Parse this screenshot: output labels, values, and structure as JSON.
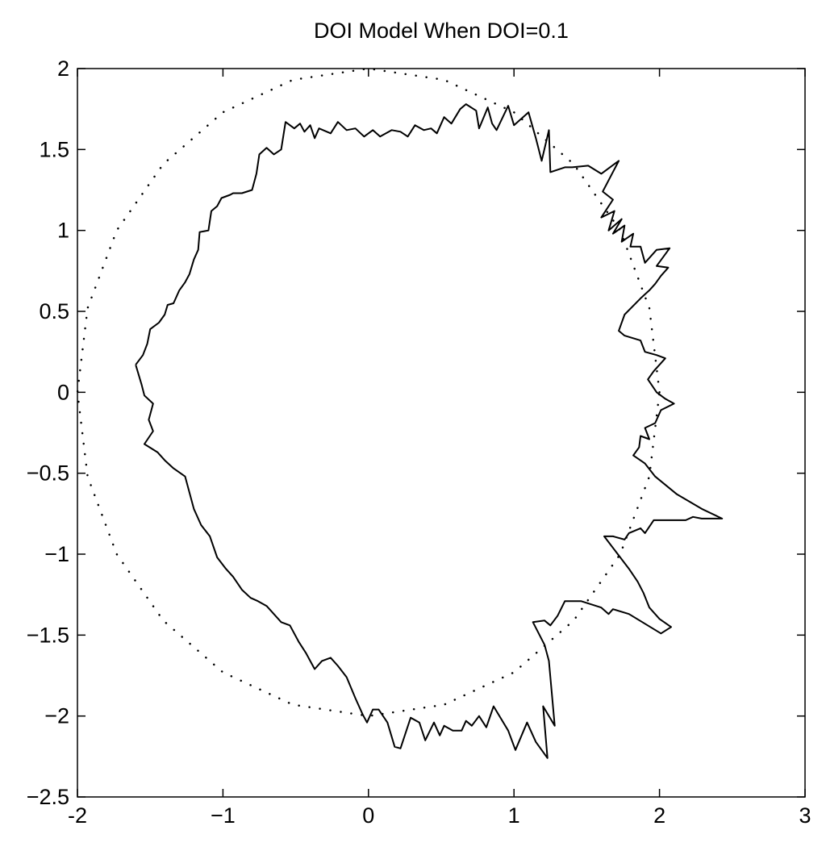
{
  "chart_data": {
    "type": "line",
    "title": "DOI Model When DOI=0.1",
    "xlim": [
      -2,
      3
    ],
    "ylim": [
      -2.5,
      2
    ],
    "xticks": [
      -2,
      {
        "value": -1,
        "label": "−1"
      },
      0,
      1,
      2,
      3
    ],
    "yticks": [
      2,
      1.5,
      1,
      0.5,
      0,
      {
        "value": -0.5,
        "label": "−0.5"
      },
      {
        "value": -1,
        "label": "−1"
      },
      {
        "value": -1.5,
        "label": "−1.5"
      },
      {
        "value": -2,
        "label": "−2"
      },
      {
        "value": -2.5,
        "label": "−2.5"
      }
    ],
    "grid": false,
    "box": true,
    "series": [
      {
        "color": "#000000",
        "style": "solid",
        "x": [
          -1.6,
          -1.55,
          -1.52,
          -1.5,
          -1.44,
          -1.4,
          -1.38,
          -1.34,
          -1.3,
          -1.26,
          -1.23,
          -1.2,
          -1.17,
          -1.16,
          -1.1,
          -1.08,
          -1.04,
          -1.01,
          -0.95,
          -0.93,
          -0.87,
          -0.8,
          -0.77,
          -0.75,
          -0.7,
          -0.65,
          -0.6,
          -0.57,
          -0.51,
          -0.47,
          -0.44,
          -0.4,
          -0.37,
          -0.34,
          -0.26,
          -0.21,
          -0.15,
          -0.09,
          -0.03,
          0.03,
          0.08,
          0.16,
          0.22,
          0.27,
          0.32,
          0.38,
          0.43,
          0.47,
          0.52,
          0.57,
          0.63,
          0.67,
          0.74,
          0.76,
          0.82,
          0.85,
          0.88,
          0.96,
          1.0,
          1.1,
          1.15,
          1.19,
          1.24,
          1.25,
          1.35,
          1.4,
          1.51,
          1.6,
          1.72,
          1.61,
          1.68,
          1.6,
          1.69,
          1.65,
          1.74,
          1.68,
          1.76,
          1.74,
          1.82,
          1.8,
          1.87,
          1.9,
          1.98,
          2.07,
          1.98,
          2.06,
          2.01,
          1.97,
          1.93,
          1.87,
          1.76,
          1.72,
          1.76,
          1.87,
          1.9,
          1.98,
          2.04,
          1.96,
          1.92,
          1.98,
          2.04,
          2.1,
          2.01,
          1.97,
          1.9,
          1.93,
          1.87,
          1.86,
          1.82,
          1.9,
          1.97,
          2.12,
          2.29,
          2.43,
          2.29,
          2.23,
          2.18,
          1.96,
          1.9,
          1.87,
          1.79,
          1.76,
          1.68,
          1.62,
          1.79,
          1.85,
          1.89,
          1.93,
          2.0,
          2.08,
          2.01,
          1.79,
          1.68,
          1.65,
          1.6,
          1.46,
          1.35,
          1.3,
          1.25,
          1.21,
          1.13,
          1.21,
          1.24,
          1.25,
          1.28,
          1.2,
          1.23,
          1.15,
          1.09,
          1.01,
          0.96,
          0.86,
          0.81,
          0.76,
          0.71,
          0.67,
          0.64,
          0.58,
          0.52,
          0.49,
          0.45,
          0.39,
          0.35,
          0.29,
          0.22,
          0.18,
          0.13,
          0.07,
          0.03,
          -0.01,
          -0.04,
          -0.09,
          -0.15,
          -0.21,
          -0.26,
          -0.32,
          -0.37,
          -0.43,
          -0.48,
          -0.54,
          -0.6,
          -0.65,
          -0.7,
          -0.76,
          -0.81,
          -0.87,
          -0.93,
          -0.98,
          -1.04,
          -1.09,
          -1.15,
          -1.2,
          -1.23,
          -1.26,
          -1.34,
          -1.4,
          -1.45,
          -1.54,
          -1.48,
          -1.51,
          -1.48,
          -1.54,
          -1.56,
          -1.6
        ],
        "y": [
          0.17,
          0.23,
          0.3,
          0.39,
          0.43,
          0.48,
          0.54,
          0.55,
          0.63,
          0.68,
          0.73,
          0.82,
          0.88,
          0.99,
          1.0,
          1.12,
          1.15,
          1.2,
          1.22,
          1.23,
          1.23,
          1.25,
          1.35,
          1.47,
          1.51,
          1.47,
          1.5,
          1.67,
          1.63,
          1.66,
          1.61,
          1.65,
          1.57,
          1.63,
          1.6,
          1.67,
          1.62,
          1.63,
          1.58,
          1.62,
          1.58,
          1.62,
          1.61,
          1.58,
          1.65,
          1.62,
          1.63,
          1.6,
          1.7,
          1.66,
          1.75,
          1.78,
          1.74,
          1.63,
          1.76,
          1.66,
          1.62,
          1.77,
          1.65,
          1.73,
          1.57,
          1.43,
          1.62,
          1.36,
          1.39,
          1.39,
          1.4,
          1.35,
          1.43,
          1.24,
          1.19,
          1.08,
          1.12,
          1.0,
          1.07,
          0.98,
          1.03,
          0.93,
          0.98,
          0.9,
          0.9,
          0.8,
          0.88,
          0.89,
          0.78,
          0.77,
          0.72,
          0.67,
          0.63,
          0.58,
          0.48,
          0.38,
          0.35,
          0.32,
          0.25,
          0.23,
          0.21,
          0.13,
          0.08,
          0.0,
          -0.04,
          -0.07,
          -0.11,
          -0.19,
          -0.22,
          -0.29,
          -0.27,
          -0.34,
          -0.39,
          -0.44,
          -0.52,
          -0.63,
          -0.72,
          -0.78,
          -0.78,
          -0.77,
          -0.79,
          -0.79,
          -0.87,
          -0.84,
          -0.87,
          -0.91,
          -0.89,
          -0.89,
          -1.09,
          -1.17,
          -1.24,
          -1.33,
          -1.4,
          -1.45,
          -1.49,
          -1.37,
          -1.34,
          -1.37,
          -1.33,
          -1.29,
          -1.29,
          -1.38,
          -1.44,
          -1.41,
          -1.42,
          -1.56,
          -1.66,
          -1.76,
          -2.06,
          -1.94,
          -2.26,
          -2.16,
          -2.04,
          -2.21,
          -2.09,
          -1.94,
          -2.07,
          -2.0,
          -2.06,
          -2.03,
          -2.09,
          -2.09,
          -2.06,
          -2.12,
          -2.04,
          -2.15,
          -2.04,
          -2.01,
          -2.2,
          -2.19,
          -2.04,
          -1.96,
          -1.96,
          -2.04,
          -1.99,
          -1.89,
          -1.76,
          -1.69,
          -1.64,
          -1.66,
          -1.71,
          -1.61,
          -1.54,
          -1.44,
          -1.42,
          -1.37,
          -1.32,
          -1.29,
          -1.27,
          -1.22,
          -1.14,
          -1.09,
          -1.02,
          -0.89,
          -0.82,
          -0.72,
          -0.62,
          -0.52,
          -0.47,
          -0.42,
          -0.37,
          -0.32,
          -0.24,
          -0.17,
          -0.07,
          -0.02,
          0.05,
          0.17
        ]
      },
      {
        "color": "#000000",
        "style": "dotted",
        "x": [
          2,
          1.93,
          1.73,
          1.41,
          1,
          0.52,
          0,
          -0.52,
          -1,
          -1.41,
          -1.73,
          -1.93,
          -2,
          -1.93,
          -1.73,
          -1.41,
          -1,
          -0.52,
          0,
          0.52,
          1,
          1.41,
          1.73,
          1.93,
          2
        ],
        "y": [
          0,
          0.52,
          1,
          1.41,
          1.73,
          1.93,
          2,
          1.93,
          1.73,
          1.41,
          1,
          0.52,
          0,
          -0.52,
          -1,
          -1.41,
          -1.73,
          -1.93,
          -2,
          -1.93,
          -1.73,
          -1.41,
          -1,
          -0.52,
          0
        ]
      }
    ]
  }
}
